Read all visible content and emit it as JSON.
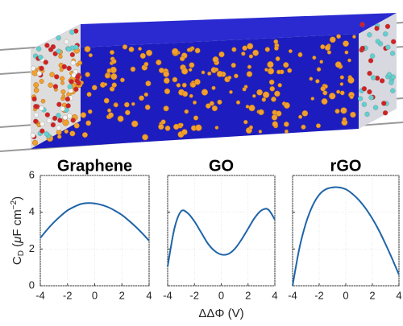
{
  "chart_data": [
    {
      "type": "line",
      "title": "Graphene",
      "color": "#1f64a8",
      "ylabel": [
        "C",
        "D",
        " (",
        "μ",
        "F cm",
        "−2",
        ")"
      ],
      "x": [
        -4,
        -3.5,
        -3,
        -2.5,
        -2,
        -1.5,
        -1,
        -0.5,
        0,
        0.5,
        1,
        1.5,
        2,
        2.5,
        3,
        3.5,
        4
      ],
      "values": [
        2.6,
        3.05,
        3.45,
        3.8,
        4.1,
        4.3,
        4.45,
        4.5,
        4.48,
        4.4,
        4.27,
        4.08,
        3.85,
        3.55,
        3.22,
        2.85,
        2.45
      ],
      "xlim": [
        -4,
        4
      ],
      "ylim": [
        0,
        6
      ],
      "xticks": [
        -4,
        -2,
        0,
        2,
        4
      ],
      "yticks": [
        0,
        2,
        4,
        6
      ],
      "grid": true
    },
    {
      "type": "line",
      "title": "GO",
      "color": "#1f64a8",
      "xlabel": "ΔΔΦ (V)",
      "x": [
        -4,
        -3.5,
        -3,
        -2.5,
        -2,
        -1.5,
        -1,
        -0.5,
        0,
        0.5,
        1,
        1.5,
        2,
        2.5,
        3,
        3.5,
        4
      ],
      "values": [
        1.05,
        3.1,
        4.05,
        3.95,
        3.5,
        2.9,
        2.3,
        1.9,
        1.7,
        1.72,
        2.0,
        2.5,
        3.1,
        3.7,
        4.1,
        4.15,
        3.6
      ],
      "xlim": [
        -4,
        4
      ],
      "ylim": [
        0,
        6
      ],
      "xticks": [
        -4,
        -2,
        0,
        2,
        4
      ],
      "grid": true
    },
    {
      "type": "line",
      "title": "rGO",
      "color": "#1f64a8",
      "x": [
        -4,
        -3.5,
        -3,
        -2.5,
        -2,
        -1.5,
        -1,
        -0.5,
        0,
        0.5,
        1,
        1.5,
        2,
        2.5,
        3,
        3.5,
        4
      ],
      "values": [
        0,
        2.0,
        3.4,
        4.35,
        4.95,
        5.25,
        5.35,
        5.35,
        5.25,
        5.0,
        4.65,
        4.2,
        3.65,
        3.0,
        2.25,
        1.45,
        0.6
      ],
      "xlim": [
        -4,
        4
      ],
      "ylim": [
        0,
        6
      ],
      "xticks": [
        -4,
        -2,
        0,
        2,
        4
      ],
      "grid": true
    }
  ]
}
